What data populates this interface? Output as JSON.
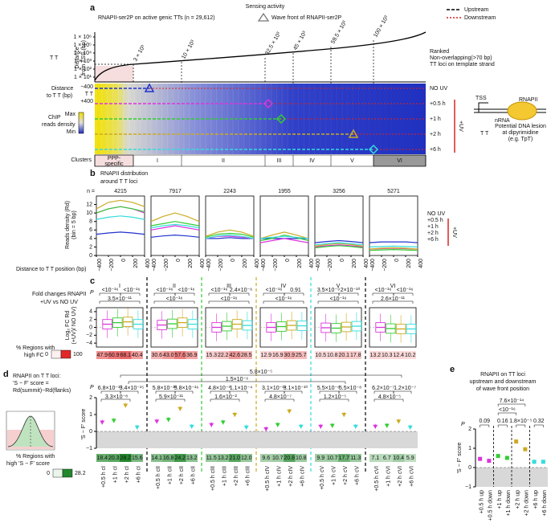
{
  "header": {
    "title": "Sensing activity"
  },
  "panel_a": {
    "label": "a",
    "subtitle": "RNAPII-ser2P on active genic TTs (n = 29,612)",
    "wave_legend": "Wave front of RNAPII-ser2P",
    "line_legend": [
      "Upstream",
      "Downstream"
    ],
    "tt_label": "T T",
    "ylabel": [
      "Distance",
      "from TSS (bp)"
    ],
    "yticks": [
      "1 × 10⁶",
      "1 × 10⁵",
      "1 × 10⁴",
      "1 × 10³",
      "1 × 10²",
      "1 × 10¹"
    ],
    "cutoffs": [
      "3 × 10³",
      "10 × 10³",
      "32.5 × 10³",
      "45 × 10³",
      "59.5 × 10³",
      "100 × 10³"
    ],
    "ranked_note": [
      "Ranked",
      "Non-overlapping(>70 bp)",
      "TT loci on template strand"
    ],
    "distance_label": [
      "Distance",
      "to T T (bp)"
    ],
    "dist_ticks": [
      "−400",
      "T T",
      "+400"
    ],
    "chip_label": [
      "ChIP",
      "reads density"
    ],
    "scale": [
      "Max",
      "Min"
    ],
    "rows": [
      "NO UV",
      "+0.5 h",
      "+1 h",
      "+2 h",
      "+6 h"
    ],
    "uv": "+UV",
    "clusters_label": "Clusters",
    "clusters": [
      "PPP-",
      "specific",
      "I",
      "II",
      "III",
      "IV",
      "V",
      "VI"
    ],
    "schematic": {
      "tss": "TSS",
      "rnapii": "RNAPII",
      "nrna": "nRNA",
      "tt": "T T",
      "lesion": [
        "Potential DNA lesion",
        "at dipyrimidine",
        "(e.g. TpT)"
      ]
    }
  },
  "panel_b": {
    "label": "b",
    "title": [
      "RNAPII distribution",
      "around  T T loci"
    ],
    "n_label": "n =",
    "ns": [
      4215,
      7917,
      2243,
      1955,
      3256,
      5271
    ],
    "ylabel": [
      "Reads density (Rd)",
      "(bin = 5 bp)"
    ],
    "xlabel": "Distance to T T position (bp)",
    "x": [
      -400,
      -200,
      0,
      200,
      400
    ],
    "xticks": [
      {
        "value": -400,
        "label": "−400"
      },
      {
        "value": -200,
        "label": "−200"
      },
      0,
      200,
      400
    ],
    "ylim": [
      0,
      14
    ],
    "yticks": [
      0,
      2,
      4,
      6,
      8,
      10,
      12
    ],
    "uv": "+UV",
    "series": [
      {
        "name": "NO UV",
        "color": "#2233cc",
        "clusters": [
          [
            5,
            5.3,
            5.5,
            5.3,
            5
          ],
          [
            4.3,
            4.6,
            4.8,
            4.6,
            4.3
          ],
          [
            4,
            4,
            4.2,
            4,
            4
          ],
          [
            4,
            4,
            4,
            4,
            4
          ],
          [
            3,
            3.3,
            3.5,
            3.3,
            3
          ],
          [
            3,
            3.2,
            3.2,
            3.2,
            3
          ]
        ]
      },
      {
        "name": "+0.5 h",
        "color": "#dd33dd",
        "clusters": [
          [
            10,
            11,
            11.5,
            11,
            10
          ],
          [
            6,
            6.5,
            7,
            6.5,
            6
          ],
          [
            4,
            4.5,
            4.5,
            4.3,
            4
          ],
          [
            3,
            3.5,
            4,
            3.5,
            3
          ],
          [
            2,
            2.3,
            2.5,
            2.3,
            2
          ],
          [
            1.5,
            1.6,
            1.7,
            1.6,
            1.5
          ]
        ]
      },
      {
        "name": "+1 h",
        "color": "#33cc33",
        "clusters": [
          [
            10,
            11,
            11.5,
            11,
            10.3
          ],
          [
            7,
            7.5,
            8,
            7.5,
            7
          ],
          [
            4.3,
            5,
            5.2,
            5,
            4.3
          ],
          [
            3.5,
            4,
            4.8,
            4.2,
            3.5
          ],
          [
            1.8,
            2.1,
            2.3,
            2.1,
            1.8
          ],
          [
            1.2,
            1.3,
            1.4,
            1.3,
            1.2
          ]
        ]
      },
      {
        "name": "+2 h",
        "color": "#ccaa22",
        "clusters": [
          [
            11,
            12.5,
            13,
            12.5,
            11.5
          ],
          [
            8,
            9.2,
            10,
            9.2,
            8
          ],
          [
            4.5,
            5.5,
            6,
            5.5,
            4.5
          ],
          [
            4,
            4.8,
            5.5,
            4.8,
            4
          ],
          [
            2.2,
            2.6,
            2.8,
            2.6,
            2.2
          ],
          [
            1.5,
            1.7,
            1.8,
            1.7,
            1.5
          ]
        ]
      },
      {
        "name": "+6 h",
        "color": "#33dddd",
        "clusters": [
          [
            8.5,
            9,
            9.3,
            9,
            8.5
          ],
          [
            6.5,
            7,
            7.3,
            7,
            6.5
          ],
          [
            4,
            4.6,
            4.8,
            4.5,
            4
          ],
          [
            4,
            4.3,
            4.5,
            4.3,
            4
          ],
          [
            2.5,
            2.8,
            3,
            2.8,
            2.5
          ],
          [
            2,
            2.1,
            2.2,
            2.1,
            2
          ]
        ]
      }
    ]
  },
  "panel_c": {
    "label": "c",
    "title": [
      "Fold changes RNAPII",
      "+UV vs NO UV"
    ],
    "ylabel": [
      "Log₂ FC Rd",
      "(+UV)/ NO UV)"
    ],
    "p": "P",
    "ylim": [
      -5,
      5
    ],
    "yticks": [
      {
        "value": -4,
        "label": "−4"
      },
      {
        "value": -2,
        "label": "−2"
      },
      0,
      2,
      4
    ],
    "groups": [
      {
        "name": "I",
        "medians": [
          0.8,
          1.2,
          1.4,
          0.8
        ],
        "pvals": [
          "<10⁻¹⁶",
          "<10⁻¹⁶",
          "3.5×10⁻¹¹"
        ],
        "pct": [
          47.9,
          60.9,
          68.1,
          40.4
        ]
      },
      {
        "name": "II",
        "medians": [
          0.6,
          0.9,
          1.2,
          0.8
        ],
        "pvals": [
          "<10⁻¹⁶",
          "<10⁻¹⁶",
          "<10⁻¹⁶"
        ],
        "pct": [
          30.6,
          43.0,
          57.6,
          36.9
        ],
        "pct_labels": [
          "30.6",
          "43.0",
          "57.6",
          "36.9"
        ]
      },
      {
        "name": "III",
        "medians": [
          0,
          0.3,
          0.8,
          0.5
        ],
        "pvals": [
          "<10⁻¹⁶",
          "2.4×10⁻⁶",
          "<10⁻¹⁶"
        ],
        "pct": [
          15.3,
          22.2,
          42.6,
          28.5
        ]
      },
      {
        "name": "IV",
        "medians": [
          0,
          0.2,
          0.5,
          0.4
        ],
        "pvals": [
          "<10⁻¹⁶",
          "0.91",
          "<10⁻¹⁶"
        ],
        "pct": [
          12.9,
          16.9,
          30.9,
          25.7
        ]
      },
      {
        "name": "V",
        "medians": [
          -0.1,
          -0.2,
          0.1,
          0.3
        ],
        "pvals": [
          "3.5×10⁻⁹",
          "2×10⁻¹⁰",
          "<10⁻¹⁶"
        ],
        "pct": [
          10.5,
          10.8,
          20.1,
          17.8
        ]
      },
      {
        "name": "VI",
        "medians": [
          0,
          -0.3,
          -0.4,
          -0.4
        ],
        "pvals": [
          "<10⁻¹⁶",
          "<10⁻¹⁶",
          "2.6×10⁻¹¹"
        ],
        "pct": [
          13.2,
          10.3,
          12.4,
          10.2
        ]
      }
    ],
    "colors": [
      "#dd33dd",
      "#33cc33",
      "#ccaa22",
      "#33dddd"
    ],
    "pct_label": [
      "% Regions with",
      "high FC"
    ],
    "pct_scale": [
      0,
      100
    ]
  },
  "panel_d": {
    "label": "d",
    "title": [
      "RNAPII on T T loci:",
      "'S − F' score =",
      "Rd(summit)−Rd(flanks)"
    ],
    "ylabel": "'S − F' score",
    "p": "P",
    "ylim": [
      -1,
      2
    ],
    "yticks": [
      {
        "value": -1,
        "label": "−1"
      },
      0,
      1,
      2
    ],
    "long_pvals": [
      "5.8×10⁻⁵",
      "1.5×10⁻⁶"
    ],
    "groups": [
      {
        "values": [
          0.55,
          0.65,
          1.55,
          0.25
        ],
        "pvals": [
          "6.8×10⁻¹⁰",
          "3.4×10⁻¹⁵",
          "3.3×10⁻⁸"
        ],
        "xlabels": [
          "+0.5 h cI",
          "+1 h cI",
          "+2 h cI",
          "+6 h cI"
        ],
        "pct": [
          18.4,
          20.3,
          28.2,
          15.6
        ]
      },
      {
        "values": [
          0.6,
          0.7,
          1.35,
          0.3
        ],
        "pvals": [
          "5.8×10⁻¹⁰",
          "5.8×10⁻¹⁶",
          "5.9×10⁻¹¹"
        ],
        "xlabels": [
          "+0.5 h cII",
          "+1 h cII",
          "+2 h cII",
          "+6 h cII"
        ],
        "pct": [
          14.1,
          16.8,
          24.2,
          13.2
        ]
      },
      {
        "values": [
          0.4,
          0.55,
          1.0,
          0.25
        ],
        "pvals": [
          "4.8×10⁻³",
          "1.1×10⁻⁴",
          "1.6×10⁻²"
        ],
        "xlabels": [
          "+0.5 h cIII",
          "+1 h cIII",
          "+2 h cIII",
          "+6 h cIII"
        ],
        "pct": [
          11.5,
          13.2,
          21.0,
          12.0
        ],
        "pct_labels": [
          "11.5",
          "13.2",
          "21.0",
          "12.0"
        ]
      },
      {
        "values": [
          0.15,
          0.4,
          1.2,
          0.3
        ],
        "pvals": [
          "3.1×10⁻¹¹",
          "3.1×10⁻¹⁰",
          "4.8×10⁻⁷"
        ],
        "xlabels": [
          "+0.5 h cIV",
          "+1 h cIV",
          "+2 h cIV",
          "+6 h cIV"
        ],
        "pct": [
          9.6,
          10.7,
          20.8,
          10.8
        ]
      },
      {
        "values": [
          0.3,
          0.35,
          1.0,
          0.3
        ],
        "pvals": [
          "5.5×10⁻⁶",
          "5.5×10⁻⁸",
          "1.2×10⁻⁵"
        ],
        "xlabels": [
          "+0.5 h cV",
          "+1 h cV",
          "+2 h cV",
          "+6 h cV"
        ],
        "pct": [
          9.9,
          10.7,
          17.7,
          11.3
        ]
      },
      {
        "values": [
          0.3,
          0.35,
          0.6,
          0.25
        ],
        "pvals": [
          "6.2×10⁻⁷",
          "1.2×10⁻⁷",
          "4.8×10⁻⁵"
        ],
        "xlabels": [
          "+0.5 h cVI",
          "+1 h cVI",
          "+2 h cVI",
          "+6 h cVI"
        ],
        "pct": [
          7.1,
          6.7,
          10.4,
          5.9
        ]
      }
    ],
    "pct_label": [
      "% Regions with",
      "high 'S − F' score"
    ],
    "pct_scale": [
      0,
      28.2
    ]
  },
  "panel_e": {
    "label": "e",
    "title": [
      "RNAPII on TT loci",
      "upstream and downstream",
      "of wave front position"
    ],
    "ylabel": "'S − F' score",
    "p": "P",
    "ylim": [
      -1,
      2
    ],
    "yticks": [
      {
        "value": -1,
        "label": "−1"
      },
      0,
      1,
      2
    ],
    "xlabels": [
      "+0.5 h up",
      "+0.5 h down",
      "+1 h up",
      "+1 h down",
      "+2 h up",
      "+2 h down",
      "+6 h up",
      "+6 h down"
    ],
    "values": [
      0.45,
      0.35,
      0.6,
      0.5,
      1.35,
      0.95,
      0.3,
      0.3
    ],
    "pvals": [
      "0.09",
      "0.16",
      "1.8×10⁻⁵",
      "0.32"
    ],
    "long_pvals": [
      "<10⁻¹⁶",
      "7.6×10⁻¹⁴"
    ]
  }
}
